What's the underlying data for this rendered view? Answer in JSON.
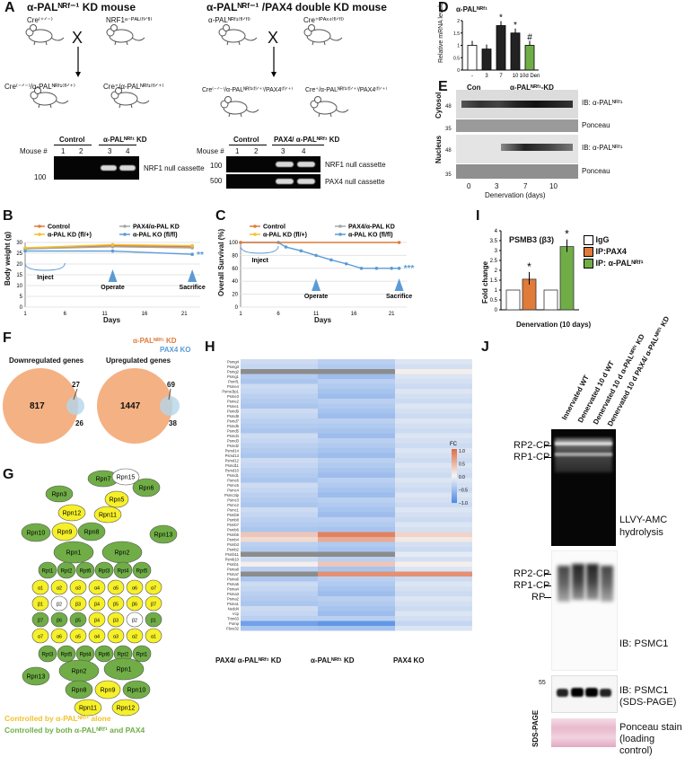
{
  "colors": {
    "orange": "#e07b39",
    "green": "#70ad47",
    "blue": "#5b9bd5",
    "gray": "#a5a5a5",
    "yellow": "#f2c12e",
    "peach": "#f4b183"
  },
  "panelA": {
    "label": "A",
    "title_left": "α-PALᴺᴿᶠ⁻¹ KD mouse",
    "title_right": "α-PALᴺᴿᶠ⁻¹ /PAX4 double KD mouse",
    "cross": "X",
    "parent1": "Cre⁽⁺ᐟ⁻⁾",
    "parent2": "NRF1ᵃ⁻ᴾᴬᴸ⁽ᶠˡᐟᶠˡ⁾",
    "parent3": "α-PALᴺᴿᶠ¹⁽ᶠˡᐟᶠˡ⁾",
    "parent4": "Cre⁺ˡᴾᴬˣ⁴⁽ᶠˡᐟᶠˡ⁾",
    "off1": "Cre⁽⁻ᐟ⁻⁾/α-PALᴺᴿᶠ¹⁽ᶠˡᐟ⁺⁾",
    "off2": "Cre⁺/α-PALᴺᴿᶠ¹⁽ᶠˡᐟ⁺⁾",
    "off3": "Cre⁽⁻ᐟ⁻⁾/α-PALᴺᴿᶠ¹⁽ᶠˡᐟ⁺⁾/PAX4⁽ᶠˡᐟ⁺⁾",
    "off4": "Cre⁺/α-PALᴺᴿᶠ¹⁽ᶠˡᐟ⁺⁾/PAX4⁽ᶠˡᐟ⁺⁾",
    "control": "Control",
    "kd": "α-PALᴺᴿᶠ¹ KD",
    "pax_kd": "PAX4/ α-PALᴺᴿᶠ¹ KD",
    "mouse": "Mouse #",
    "m1": "1",
    "m2": "2",
    "m3": "3",
    "m4": "4",
    "mw100": "100",
    "mw500": "500",
    "nrf1_cassette": "NRF1 null cassette",
    "pax4_cassette": "PAX4 null cassette"
  },
  "panelB": {
    "label": "B",
    "ylabel": "Body weight (g)",
    "xlabel": "Days",
    "legend": [
      "Control",
      "PAX4/α-PAL KD",
      "α-PAL KD (fl/+)",
      "α-PAL KO (fl/fl)"
    ],
    "inject": "Inject",
    "operate": "Operate",
    "sacrifice": "Sacrifice",
    "sig": "**",
    "chart_data": {
      "type": "line",
      "x": [
        1,
        12,
        22
      ],
      "yticks": [
        0,
        5,
        10,
        15,
        20,
        25,
        30
      ],
      "xticks": [
        1,
        6,
        11,
        16,
        21
      ],
      "series": [
        {
          "name": "Control",
          "values": [
            27,
            28.5,
            28
          ]
        },
        {
          "name": "PAX4/α-PAL KD",
          "values": [
            27,
            28,
            27.5
          ]
        },
        {
          "name": "α-PAL KD (fl/+)",
          "values": [
            27.5,
            29,
            28.5
          ]
        },
        {
          "name": "α-PAL KO (fl/fl)",
          "values": [
            26,
            26,
            24.5
          ]
        }
      ]
    }
  },
  "panelC": {
    "label": "C",
    "ylabel": "Overall Survival (%)",
    "xlabel": "Days",
    "legend": [
      "Control",
      "PAX4/α-PAL KD",
      "α-PAL KD (fl/+)",
      "α-PAL KO (fl/fl)"
    ],
    "inject": "Inject",
    "operate": "Operate",
    "sacrifice": "Sacrifice",
    "sig": "***",
    "chart_data": {
      "type": "line",
      "yticks": [
        0,
        20,
        40,
        60,
        80,
        100
      ],
      "xticks": [
        1,
        6,
        11,
        16,
        21
      ],
      "series": [
        {
          "name": "α-PAL KO (fl/fl)",
          "x": [
            1,
            6,
            7,
            9,
            11,
            13,
            15,
            17,
            19,
            21,
            22
          ],
          "values": [
            100,
            100,
            93,
            87,
            80,
            73,
            67,
            60,
            60,
            60,
            60
          ]
        },
        {
          "name": "Control",
          "x": [
            1,
            22
          ],
          "values": [
            100,
            100
          ]
        }
      ]
    }
  },
  "panelD": {
    "label": "D",
    "title": "α-PALᴺᴿᶠ¹",
    "ylabel": "Relative mRNA levels",
    "groups": [
      "Con",
      "α-PALᴺᴿᶠ¹-KD"
    ],
    "chart_data": {
      "type": "bar",
      "categories": [
        "-",
        "3",
        "7",
        "10",
        "10d Den"
      ],
      "values": [
        1.0,
        0.85,
        1.8,
        1.5,
        1.0
      ],
      "yticks": [
        0,
        0.5,
        1,
        1.5,
        2
      ],
      "sig": [
        "",
        "",
        "*",
        "*",
        "#"
      ]
    }
  },
  "panelE": {
    "label": "E",
    "cytosol": "Cytosol",
    "nucleus": "Nucleus",
    "ib1": "IB: α-PALᴺᴿᶠ¹",
    "ponceau": "Ponceau",
    "ib2": "IB: α-PALᴺᴿᶠ¹",
    "mw48": "48",
    "mw35": "35",
    "lanes": [
      "0",
      "3",
      "7",
      "10"
    ],
    "xlabel": "Denervation (days)"
  },
  "panelF": {
    "label": "F",
    "legend1": "α-PALᴺᴿᶠ¹ KD",
    "legend2": "PAX4 KO",
    "down_title": "Downregulated genes",
    "up_title": "Upregulated genes",
    "down_a": "817",
    "down_ab": "27",
    "down_b": "26",
    "up_a": "1447",
    "up_ab": "69",
    "up_b": "38"
  },
  "panelG": {
    "label": "G",
    "note1": "Controlled by α-PALᴺᴿᶠ¹ alone",
    "note2": "Controlled by both α-PALᴺᴿᶠ¹ and PAX4"
  },
  "panelH": {
    "label": "H",
    "rows": [
      "Psmg4",
      "Psmg3",
      "Psmg2",
      "Psmg1",
      "Psmf1",
      "Psme4",
      "Psme3ip1",
      "Psme3",
      "Psme2",
      "Psme1",
      "Psmd9",
      "Psmd8",
      "Psmd7",
      "Psmd6",
      "Psmd5",
      "Psmd4",
      "Psmd3",
      "Psmd2",
      "Psmd14",
      "Psmd13",
      "Psmd12",
      "Psmd11",
      "Psmd10",
      "Psmd1",
      "Psmc6",
      "Psmc5",
      "Psmc4",
      "Psmc3ip",
      "Psmc3",
      "Psmc2",
      "Psmc1",
      "Psmb9",
      "Psmb8",
      "Psmb7",
      "Psmb6",
      "Psmb5",
      "Psmb4",
      "Psmb3",
      "Psmb2",
      "Psmb11",
      "Psmb10",
      "Psmb1",
      "Psma8",
      "Psma7",
      "Psma6",
      "Psma5",
      "Psma4",
      "Psma3",
      "Psma2",
      "Psma1",
      "Nedd4",
      "Vcp",
      "Trim63",
      "Pomp",
      "Fbxo32"
    ],
    "cols": [
      "PAX4/ α-PALᴺᴿᶠ¹ KD",
      "α-PALᴺᴿᶠ¹ KD",
      "PAX4 KO"
    ],
    "fc": "FC",
    "scale": [
      "1.0",
      "0.5",
      "0.0",
      "−0.5",
      "−1.0"
    ]
  },
  "panelI": {
    "label": "I",
    "title": "PSMB3 (β3)",
    "ylabel": "Fold change",
    "xlabel": "Denervation (10 days)",
    "legend": [
      "IgG",
      "IP:PAX4",
      "IP: α-PALᴺᴿᶠ¹"
    ],
    "chart_data": {
      "type": "bar",
      "categories": [
        "IgG",
        "IP:PAX4",
        "IgG",
        "IP: α-PAL"
      ],
      "values": [
        1.0,
        1.55,
        1.0,
        3.2
      ],
      "yticks": [
        0,
        0.5,
        1,
        1.5,
        2,
        2.5,
        3,
        3.5,
        4
      ],
      "sig": [
        "",
        "*",
        "",
        "*"
      ]
    }
  },
  "panelJ": {
    "label": "J",
    "lanes": [
      "Innervated WT",
      "Denervated 10 d WT",
      "Denervated 10 d α-PALᴺᴿᶠ¹ KD",
      "Denervated 10 d PAX4/ α-PALᴺᴿᶠ¹ KD"
    ],
    "rp2": "RP2-CP",
    "rp1": "RP1-CP",
    "rp": "RP",
    "llvy": "LLVY-AMC hydrolysis",
    "psmc1": "IB: PSMC1",
    "psmc1sds": "IB: PSMC1 (SDS-PAGE)",
    "sds": "SDS-PAGE",
    "mw55": "55",
    "ponceau": "Ponceau stain (loading control)"
  }
}
